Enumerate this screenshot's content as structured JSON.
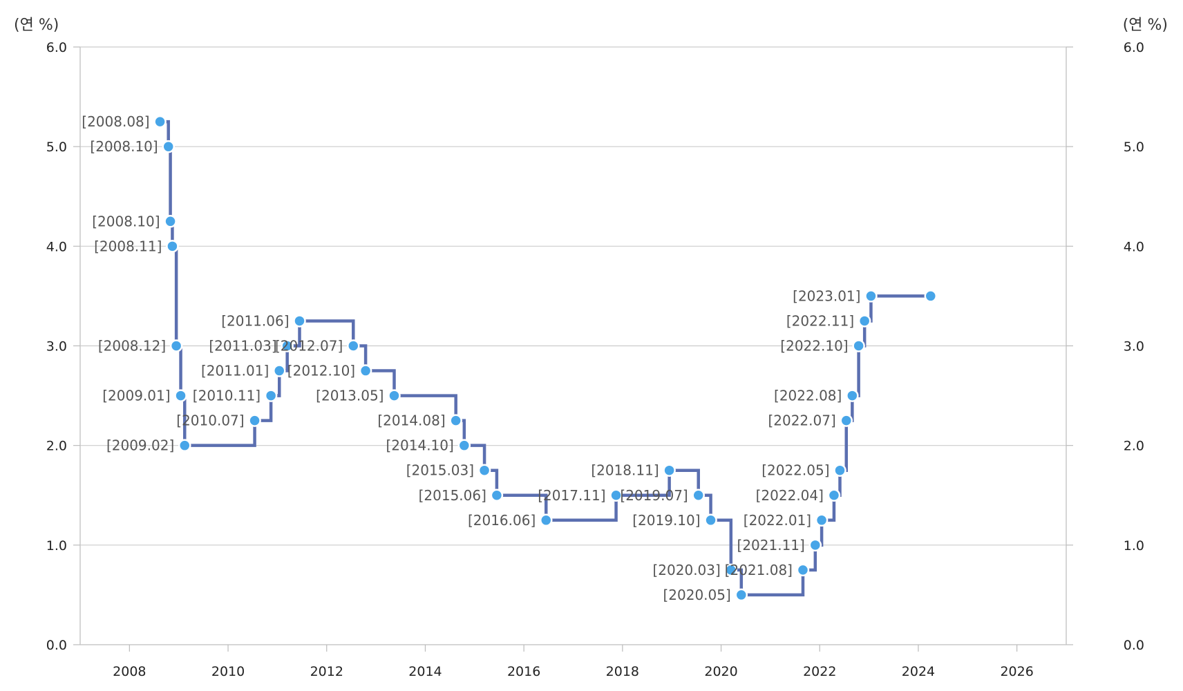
{
  "chart_data": {
    "type": "line",
    "step": true,
    "y_unit_left": "(연 %)",
    "y_unit_right": "(연 %)",
    "ylim": [
      0,
      6
    ],
    "y_ticks": [
      "0.0",
      "1.0",
      "2.0",
      "3.0",
      "4.0",
      "5.0",
      "6.0"
    ],
    "xlim": [
      2007,
      2027
    ],
    "x_ticks": [
      "2008",
      "2010",
      "2012",
      "2014",
      "2016",
      "2018",
      "2020",
      "2022",
      "2024",
      "2026"
    ],
    "grid": true,
    "line_color": "#5b6fb0",
    "marker_color": "#47a5e8",
    "points": [
      {
        "x": 2008.62,
        "y": 5.25,
        "label": "[2008.08]"
      },
      {
        "x": 2008.79,
        "y": 5.0,
        "label": "[2008.10]"
      },
      {
        "x": 2008.83,
        "y": 4.25,
        "label": "[2008.10]"
      },
      {
        "x": 2008.87,
        "y": 4.0,
        "label": "[2008.11]"
      },
      {
        "x": 2008.95,
        "y": 3.0,
        "label": "[2008.12]"
      },
      {
        "x": 2009.04,
        "y": 2.5,
        "label": "[2009.01]"
      },
      {
        "x": 2009.12,
        "y": 2.0,
        "label": "[2009.02]"
      },
      {
        "x": 2010.54,
        "y": 2.25,
        "label": "[2010.07]"
      },
      {
        "x": 2010.87,
        "y": 2.5,
        "label": "[2010.11]"
      },
      {
        "x": 2011.04,
        "y": 2.75,
        "label": "[2011.01]"
      },
      {
        "x": 2011.2,
        "y": 3.0,
        "label": "[2011.03]"
      },
      {
        "x": 2011.45,
        "y": 3.25,
        "label": "[2011.06]"
      },
      {
        "x": 2012.54,
        "y": 3.0,
        "label": "[2012.07]"
      },
      {
        "x": 2012.79,
        "y": 2.75,
        "label": "[2012.10]"
      },
      {
        "x": 2013.37,
        "y": 2.5,
        "label": "[2013.05]"
      },
      {
        "x": 2014.62,
        "y": 2.25,
        "label": "[2014.08]"
      },
      {
        "x": 2014.79,
        "y": 2.0,
        "label": "[2014.10]"
      },
      {
        "x": 2015.2,
        "y": 1.75,
        "label": "[2015.03]"
      },
      {
        "x": 2015.45,
        "y": 1.5,
        "label": "[2015.06]"
      },
      {
        "x": 2016.45,
        "y": 1.25,
        "label": "[2016.06]"
      },
      {
        "x": 2017.87,
        "y": 1.5,
        "label": "[2017.11]"
      },
      {
        "x": 2018.95,
        "y": 1.75,
        "label": "[2018.11]"
      },
      {
        "x": 2019.54,
        "y": 1.5,
        "label": "[2019.07]"
      },
      {
        "x": 2019.79,
        "y": 1.25,
        "label": "[2019.10]"
      },
      {
        "x": 2020.2,
        "y": 0.75,
        "label": "[2020.03]"
      },
      {
        "x": 2020.41,
        "y": 0.5,
        "label": "[2020.05]"
      },
      {
        "x": 2021.66,
        "y": 0.75,
        "label": "[2021.08]"
      },
      {
        "x": 2021.91,
        "y": 1.0,
        "label": "[2021.11]"
      },
      {
        "x": 2022.04,
        "y": 1.25,
        "label": "[2022.01]"
      },
      {
        "x": 2022.29,
        "y": 1.5,
        "label": "[2022.04]"
      },
      {
        "x": 2022.41,
        "y": 1.75,
        "label": "[2022.05]"
      },
      {
        "x": 2022.54,
        "y": 2.25,
        "label": "[2022.07]"
      },
      {
        "x": 2022.66,
        "y": 2.5,
        "label": "[2022.08]"
      },
      {
        "x": 2022.79,
        "y": 3.0,
        "label": "[2022.10]"
      },
      {
        "x": 2022.91,
        "y": 3.25,
        "label": "[2022.11]"
      },
      {
        "x": 2023.04,
        "y": 3.5,
        "label": "[2023.01]"
      },
      {
        "x": 2024.25,
        "y": 3.5,
        "label": ""
      }
    ]
  }
}
